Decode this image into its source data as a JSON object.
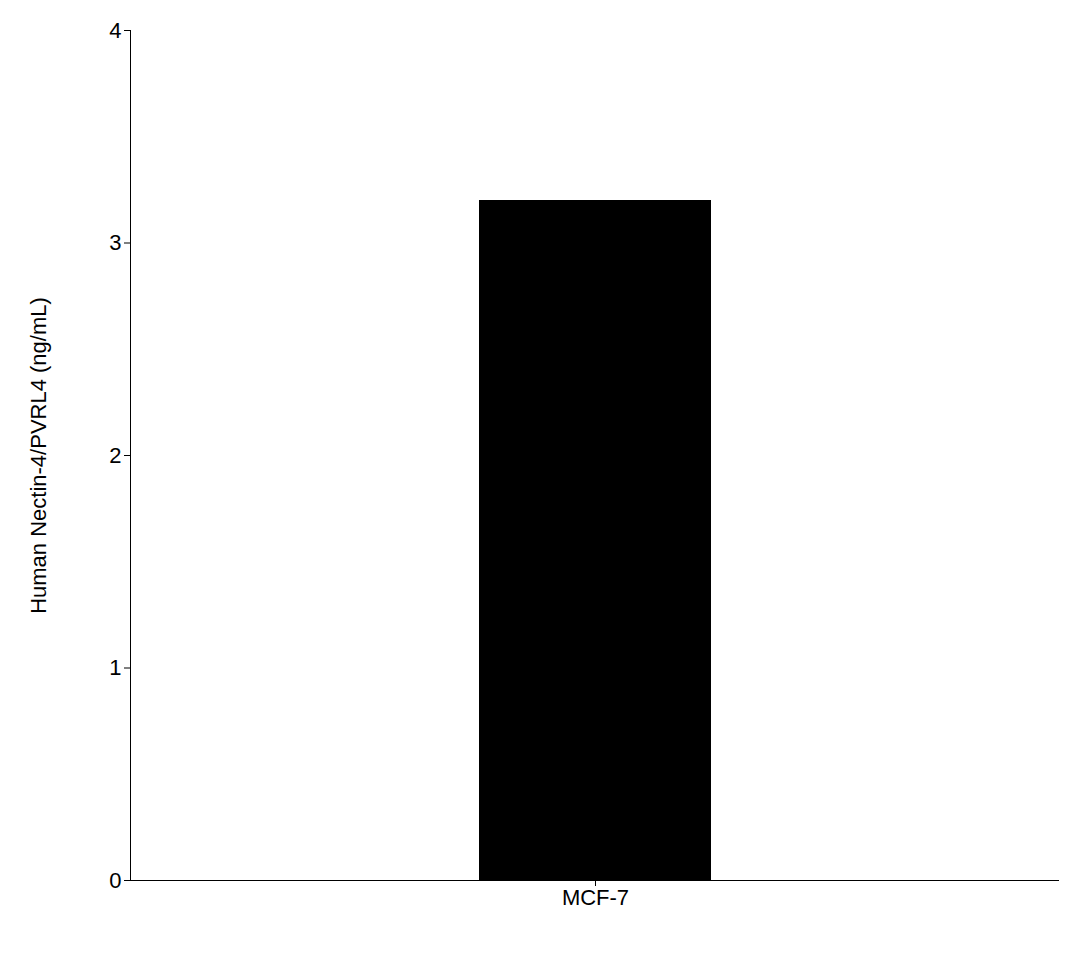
{
  "chart_data": {
    "type": "bar",
    "categories": [
      "MCF-7"
    ],
    "values": [
      3.2
    ],
    "color": "#000000",
    "ylabel": "Human Nectin-4/PVRL4 (ng/mL)",
    "ylim": [
      0,
      4
    ],
    "yticks": [
      0,
      1,
      2,
      3,
      4
    ],
    "grid": false
  }
}
